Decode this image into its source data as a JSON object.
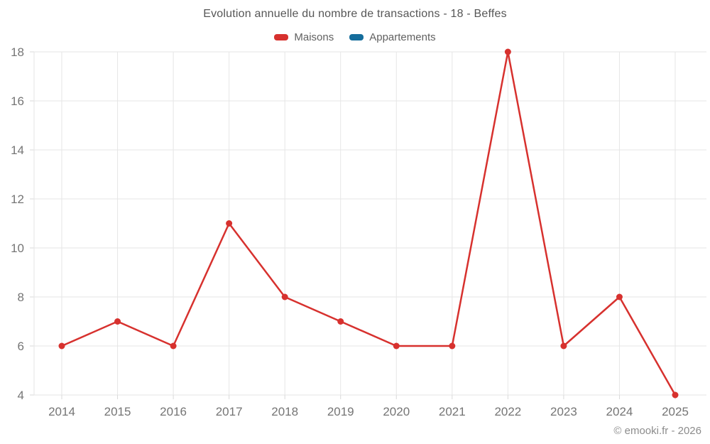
{
  "title": "Evolution annuelle du nombre de transactions - 18 - Beffes",
  "legend": [
    {
      "id": "maisons",
      "label": "Maisons",
      "color": "#d7312e"
    },
    {
      "id": "appartements",
      "label": "Appartements",
      "color": "#156d9c"
    }
  ],
  "copyright": "© emooki.fr - 2026",
  "colors": {
    "grid": "#e6e6e6",
    "tick": "#d9d9d9",
    "axis_label": "#757575"
  },
  "chart_data": {
    "type": "line",
    "x": [
      2014,
      2015,
      2016,
      2017,
      2018,
      2019,
      2020,
      2021,
      2022,
      2023,
      2024,
      2025
    ],
    "series": [
      {
        "name": "Maisons",
        "color": "#d7312e",
        "values": [
          6,
          7,
          6,
          11,
          8,
          7,
          6,
          6,
          18,
          6,
          8,
          4
        ]
      },
      {
        "name": "Appartements",
        "color": "#156d9c",
        "values": []
      }
    ],
    "title": "Evolution annuelle du nombre de transactions - 18 - Beffes",
    "xlabel": "",
    "ylabel": "",
    "ylim": [
      4,
      18
    ],
    "yticks": [
      4,
      6,
      8,
      10,
      12,
      14,
      16,
      18
    ],
    "grid": true,
    "legend_position": "top",
    "annotations": [
      "© emooki.fr - 2026"
    ]
  }
}
